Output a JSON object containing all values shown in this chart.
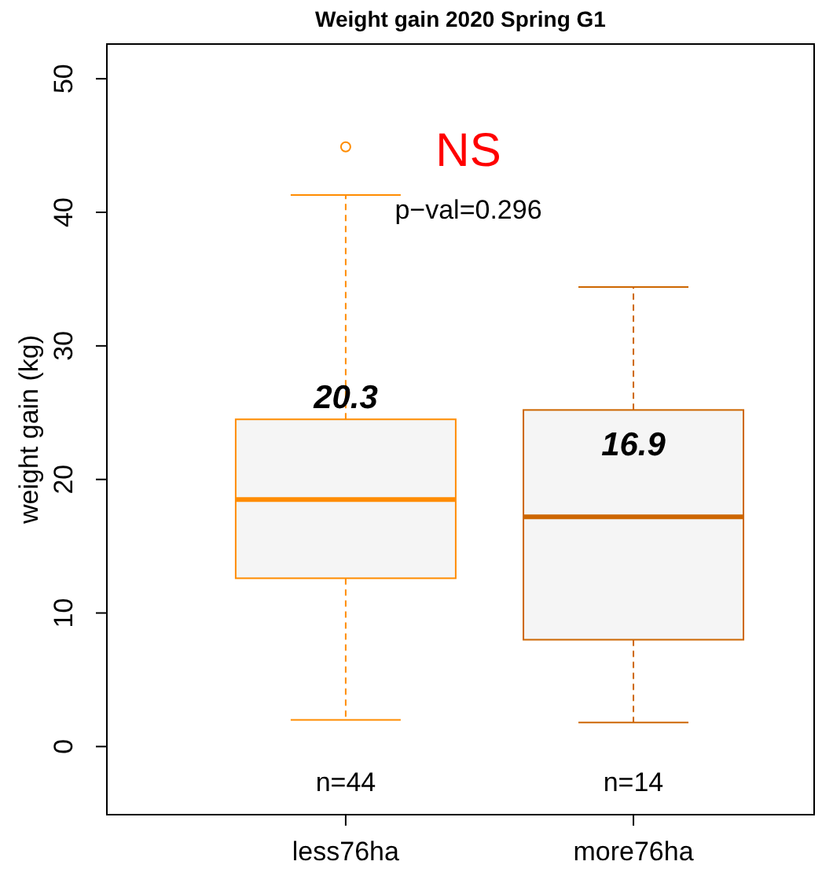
{
  "chart_data": {
    "type": "box",
    "title": "Weight gain 2020 Spring G1",
    "ylabel": "weight gain (kg)",
    "categories": [
      "less76ha",
      "more76ha"
    ],
    "colors": [
      "#ff8c00",
      "#cd6600"
    ],
    "boxes": [
      {
        "low": 2.0,
        "q1": 12.6,
        "median": 18.5,
        "q3": 24.5,
        "high": 41.3,
        "outliers": [
          44.9
        ]
      },
      {
        "low": 1.8,
        "q1": 8.0,
        "median": 17.2,
        "q3": 25.2,
        "high": 34.4
      }
    ],
    "ylim": [
      -5.1,
      52.6
    ],
    "yticks": [
      0,
      10,
      20,
      30,
      40,
      50
    ],
    "grid": false,
    "annotations": [
      "20.3",
      "16.9",
      "NS",
      "p−val=0.296",
      "n=44",
      "n=14"
    ]
  }
}
